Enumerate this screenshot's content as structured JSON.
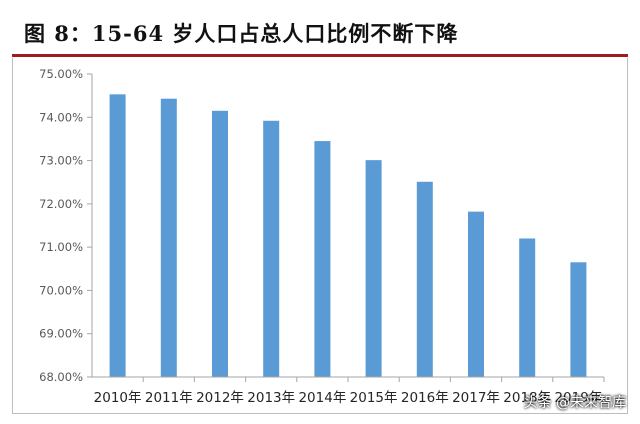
{
  "header": {
    "title": "图 8：15-64 岁人口占总人口比例不断下降"
  },
  "watermark": {
    "text": "头条 @未来智库"
  },
  "chart_data": {
    "type": "bar",
    "title": "",
    "xlabel": "",
    "ylabel": "",
    "categories": [
      "2010年",
      "2011年",
      "2012年",
      "2013年",
      "2014年",
      "2015年",
      "2016年",
      "2017年",
      "2018年",
      "2019年"
    ],
    "values": [
      74.53,
      74.43,
      74.15,
      73.92,
      73.45,
      73.01,
      72.51,
      71.82,
      71.2,
      70.65
    ],
    "ylim": [
      68,
      75
    ],
    "yticks": [
      "68.00%",
      "69.00%",
      "70.00%",
      "71.00%",
      "72.00%",
      "73.00%",
      "74.00%",
      "75.00%"
    ],
    "grid": false,
    "bar_color": "#5b9bd5"
  }
}
